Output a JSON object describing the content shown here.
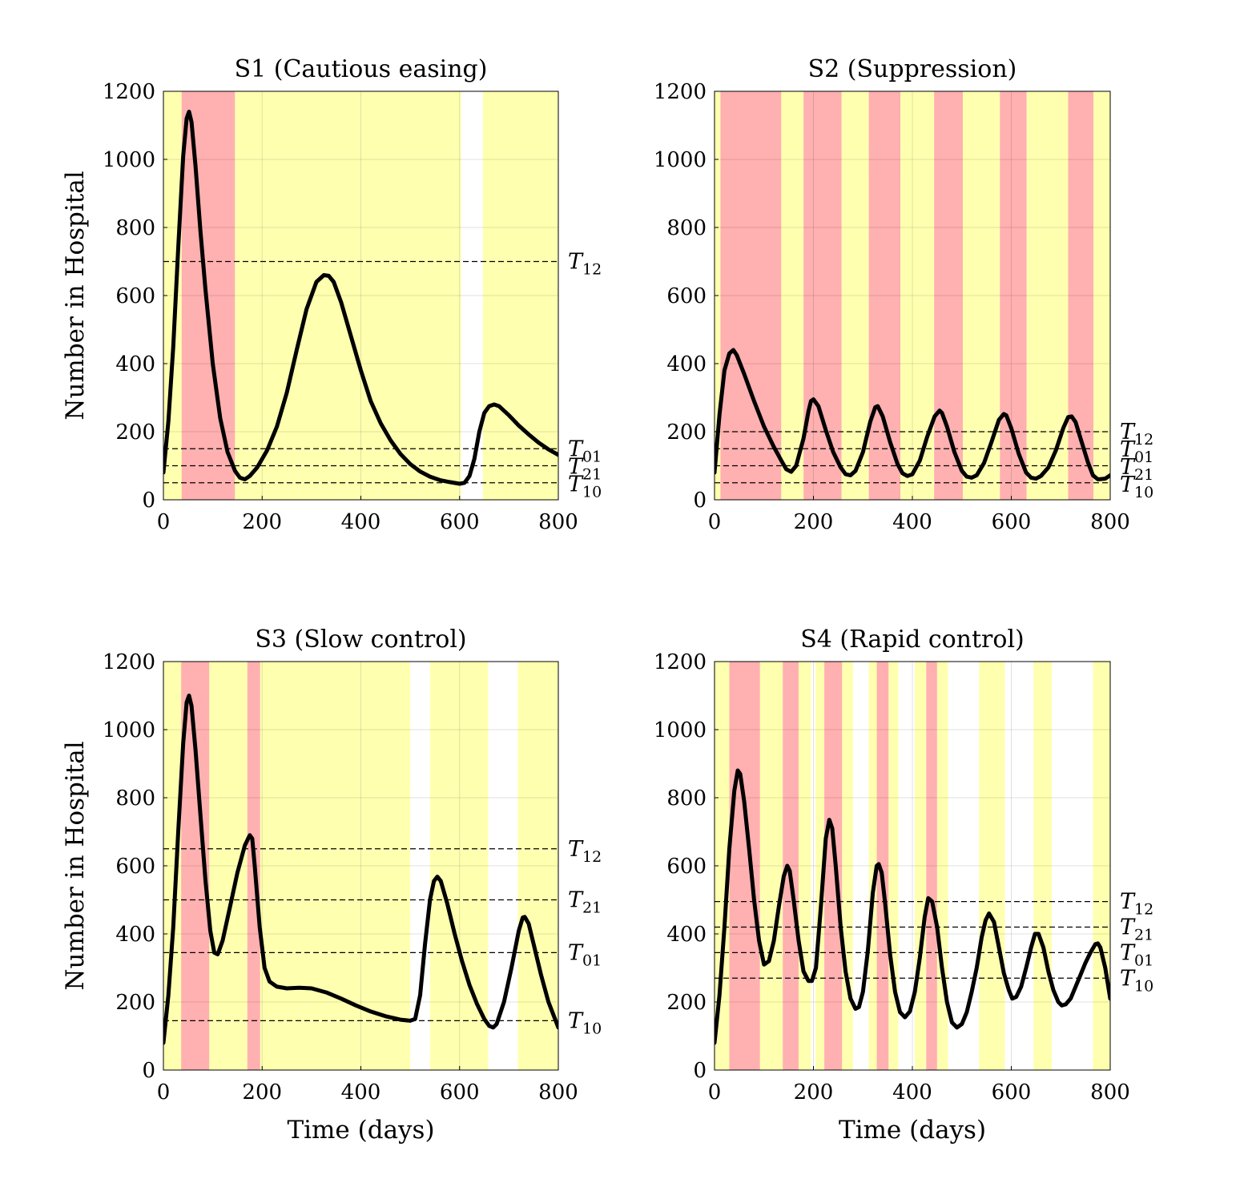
{
  "chart_data": [
    {
      "type": "line",
      "title": "S1 (Cautious easing)",
      "xlabel": "",
      "ylabel": "Number in Hospital",
      "xlim": [
        0,
        800
      ],
      "ylim": [
        0,
        1200
      ],
      "xticks": [
        0,
        200,
        400,
        600,
        800
      ],
      "yticks": [
        0,
        200,
        400,
        600,
        800,
        1000,
        1200
      ],
      "grid": true,
      "band_colors": {
        "level1": "#ffffb0",
        "level2": "#ffb0b0",
        "level0": "#ffffff"
      },
      "bands": [
        {
          "from": 0,
          "to": 37,
          "level": "level1"
        },
        {
          "from": 37,
          "to": 145,
          "level": "level2"
        },
        {
          "from": 145,
          "to": 603,
          "level": "level1"
        },
        {
          "from": 603,
          "to": 647,
          "level": "level0"
        },
        {
          "from": 647,
          "to": 800,
          "level": "level1"
        }
      ],
      "thresholds": [
        {
          "name": "T",
          "sub": "12",
          "value": 700
        },
        {
          "name": "T",
          "sub": "01",
          "value": 150
        },
        {
          "name": "T",
          "sub": "21",
          "value": 100
        },
        {
          "name": "T",
          "sub": "10",
          "value": 50
        }
      ],
      "series": [
        {
          "x": [
            0,
            10,
            20,
            30,
            40,
            47,
            52,
            57,
            65,
            75,
            85,
            100,
            115,
            130,
            145,
            155,
            165,
            175,
            190,
            210,
            230,
            250,
            270,
            290,
            310,
            325,
            335,
            345,
            360,
            380,
            400,
            420,
            440,
            460,
            480,
            500,
            520,
            540,
            560,
            580,
            600,
            610,
            620,
            630,
            640,
            650,
            660,
            670,
            680,
            700,
            720,
            740,
            760,
            780,
            800
          ],
          "y": [
            80,
            230,
            450,
            740,
            1010,
            1120,
            1140,
            1110,
            980,
            790,
            620,
            400,
            240,
            140,
            85,
            65,
            60,
            70,
            95,
            145,
            215,
            315,
            440,
            560,
            640,
            660,
            658,
            640,
            580,
            480,
            380,
            290,
            225,
            175,
            135,
            105,
            83,
            68,
            58,
            52,
            47,
            50,
            70,
            120,
            200,
            255,
            275,
            280,
            275,
            248,
            218,
            192,
            168,
            148,
            132
          ]
        }
      ]
    },
    {
      "type": "line",
      "title": "S2 (Suppression)",
      "xlabel": "",
      "ylabel": "",
      "xlim": [
        0,
        800
      ],
      "ylim": [
        0,
        1200
      ],
      "xticks": [
        0,
        200,
        400,
        600,
        800
      ],
      "yticks": [
        0,
        200,
        400,
        600,
        800,
        1000,
        1200
      ],
      "grid": true,
      "band_colors": {
        "level1": "#ffffb0",
        "level2": "#ffb0b0",
        "level0": "#ffffff"
      },
      "bands": [
        {
          "from": 0,
          "to": 12,
          "level": "level1"
        },
        {
          "from": 12,
          "to": 135,
          "level": "level2"
        },
        {
          "from": 135,
          "to": 180,
          "level": "level1"
        },
        {
          "from": 180,
          "to": 257,
          "level": "level2"
        },
        {
          "from": 257,
          "to": 312,
          "level": "level1"
        },
        {
          "from": 312,
          "to": 376,
          "level": "level2"
        },
        {
          "from": 376,
          "to": 444,
          "level": "level1"
        },
        {
          "from": 444,
          "to": 502,
          "level": "level2"
        },
        {
          "from": 502,
          "to": 577,
          "level": "level1"
        },
        {
          "from": 577,
          "to": 631,
          "level": "level2"
        },
        {
          "from": 631,
          "to": 715,
          "level": "level1"
        },
        {
          "from": 715,
          "to": 766,
          "level": "level2"
        },
        {
          "from": 766,
          "to": 800,
          "level": "level1"
        }
      ],
      "thresholds": [
        {
          "name": "T",
          "sub": "12",
          "value": 200
        },
        {
          "name": "T",
          "sub": "01",
          "value": 150
        },
        {
          "name": "T",
          "sub": "21",
          "value": 100
        },
        {
          "name": "T",
          "sub": "10",
          "value": 50
        }
      ],
      "series": [
        {
          "x": [
            0,
            10,
            20,
            30,
            38,
            45,
            60,
            80,
            100,
            120,
            135,
            145,
            155,
            165,
            180,
            190,
            195,
            200,
            210,
            225,
            240,
            255,
            265,
            275,
            285,
            300,
            315,
            325,
            330,
            340,
            355,
            370,
            380,
            390,
            400,
            415,
            430,
            445,
            455,
            460,
            470,
            485,
            500,
            510,
            520,
            530,
            545,
            560,
            575,
            585,
            590,
            600,
            615,
            630,
            640,
            650,
            660,
            675,
            690,
            705,
            715,
            722,
            730,
            740,
            755,
            765,
            775,
            790,
            800
          ],
          "y": [
            80,
            250,
            380,
            430,
            440,
            425,
            370,
            290,
            215,
            155,
            115,
            90,
            82,
            100,
            180,
            260,
            290,
            295,
            275,
            205,
            140,
            95,
            75,
            72,
            85,
            140,
            230,
            272,
            275,
            245,
            170,
            105,
            78,
            70,
            75,
            115,
            185,
            245,
            262,
            255,
            215,
            140,
            85,
            68,
            65,
            72,
            108,
            170,
            235,
            252,
            248,
            210,
            135,
            80,
            65,
            62,
            70,
            95,
            145,
            210,
            243,
            245,
            228,
            180,
            110,
            72,
            60,
            62,
            72
          ]
        }
      ]
    },
    {
      "type": "line",
      "title": "S3 (Slow control)",
      "xlabel": "Time (days)",
      "ylabel": "Number in Hospital",
      "xlim": [
        0,
        800
      ],
      "ylim": [
        0,
        1200
      ],
      "xticks": [
        0,
        200,
        400,
        600,
        800
      ],
      "yticks": [
        0,
        200,
        400,
        600,
        800,
        1000,
        1200
      ],
      "grid": true,
      "band_colors": {
        "level1": "#ffffb0",
        "level2": "#ffb0b0",
        "level0": "#ffffff"
      },
      "bands": [
        {
          "from": 0,
          "to": 36,
          "level": "level1"
        },
        {
          "from": 36,
          "to": 93,
          "level": "level2"
        },
        {
          "from": 93,
          "to": 170,
          "level": "level1"
        },
        {
          "from": 170,
          "to": 196,
          "level": "level2"
        },
        {
          "from": 196,
          "to": 500,
          "level": "level1"
        },
        {
          "from": 500,
          "to": 540,
          "level": "level0"
        },
        {
          "from": 540,
          "to": 658,
          "level": "level1"
        },
        {
          "from": 658,
          "to": 718,
          "level": "level0"
        },
        {
          "from": 718,
          "to": 800,
          "level": "level1"
        }
      ],
      "thresholds": [
        {
          "name": "T",
          "sub": "12",
          "value": 650
        },
        {
          "name": "T",
          "sub": "21",
          "value": 500
        },
        {
          "name": "T",
          "sub": "01",
          "value": 345
        },
        {
          "name": "T",
          "sub": "10",
          "value": 145
        }
      ],
      "series": [
        {
          "x": [
            0,
            10,
            20,
            30,
            40,
            47,
            52,
            57,
            65,
            75,
            85,
            95,
            103,
            110,
            120,
            135,
            150,
            165,
            175,
            180,
            185,
            195,
            205,
            215,
            230,
            250,
            275,
            300,
            330,
            360,
            390,
            420,
            450,
            480,
            500,
            510,
            520,
            530,
            540,
            548,
            555,
            562,
            575,
            590,
            605,
            620,
            635,
            650,
            660,
            668,
            675,
            690,
            705,
            720,
            728,
            732,
            740,
            750,
            765,
            780,
            800
          ],
          "y": [
            80,
            220,
            420,
            700,
            960,
            1080,
            1100,
            1070,
            940,
            750,
            560,
            410,
            345,
            340,
            380,
            480,
            580,
            660,
            690,
            680,
            600,
            420,
            300,
            260,
            245,
            240,
            242,
            240,
            228,
            210,
            190,
            172,
            158,
            148,
            145,
            150,
            220,
            370,
            500,
            555,
            568,
            555,
            490,
            400,
            320,
            250,
            195,
            150,
            130,
            125,
            135,
            200,
            300,
            410,
            448,
            450,
            430,
            370,
            280,
            200,
            125
          ]
        }
      ]
    },
    {
      "type": "line",
      "title": "S4 (Rapid control)",
      "xlabel": "Time (days)",
      "ylabel": "",
      "xlim": [
        0,
        800
      ],
      "ylim": [
        0,
        1200
      ],
      "xticks": [
        0,
        200,
        400,
        600,
        800
      ],
      "yticks": [
        0,
        200,
        400,
        600,
        800,
        1000,
        1200
      ],
      "grid": true,
      "band_colors": {
        "level1": "#ffffb0",
        "level2": "#ffb0b0",
        "level0": "#ffffff"
      },
      "bands": [
        {
          "from": 0,
          "to": 30,
          "level": "level1"
        },
        {
          "from": 30,
          "to": 92,
          "level": "level2"
        },
        {
          "from": 92,
          "to": 138,
          "level": "level1"
        },
        {
          "from": 138,
          "to": 170,
          "level": "level2"
        },
        {
          "from": 170,
          "to": 195,
          "level": "level1"
        },
        {
          "from": 195,
          "to": 204,
          "level": "level0"
        },
        {
          "from": 204,
          "to": 222,
          "level": "level1"
        },
        {
          "from": 222,
          "to": 258,
          "level": "level2"
        },
        {
          "from": 258,
          "to": 280,
          "level": "level1"
        },
        {
          "from": 280,
          "to": 312,
          "level": "level0"
        },
        {
          "from": 312,
          "to": 328,
          "level": "level1"
        },
        {
          "from": 328,
          "to": 352,
          "level": "level2"
        },
        {
          "from": 352,
          "to": 372,
          "level": "level1"
        },
        {
          "from": 372,
          "to": 405,
          "level": "level0"
        },
        {
          "from": 405,
          "to": 428,
          "level": "level1"
        },
        {
          "from": 428,
          "to": 450,
          "level": "level2"
        },
        {
          "from": 450,
          "to": 472,
          "level": "level1"
        },
        {
          "from": 472,
          "to": 535,
          "level": "level0"
        },
        {
          "from": 535,
          "to": 587,
          "level": "level1"
        },
        {
          "from": 587,
          "to": 645,
          "level": "level0"
        },
        {
          "from": 645,
          "to": 682,
          "level": "level1"
        },
        {
          "from": 682,
          "to": 765,
          "level": "level0"
        },
        {
          "from": 765,
          "to": 800,
          "level": "level1"
        }
      ],
      "thresholds": [
        {
          "name": "T",
          "sub": "12",
          "value": 495
        },
        {
          "name": "T",
          "sub": "21",
          "value": 420
        },
        {
          "name": "T",
          "sub": "01",
          "value": 345
        },
        {
          "name": "T",
          "sub": "10",
          "value": 270
        }
      ],
      "series": [
        {
          "x": [
            0,
            10,
            20,
            30,
            40,
            47,
            52,
            60,
            70,
            80,
            90,
            100,
            110,
            120,
            130,
            140,
            147,
            152,
            160,
            170,
            180,
            190,
            197,
            205,
            215,
            225,
            232,
            238,
            245,
            255,
            265,
            275,
            285,
            292,
            300,
            310,
            320,
            328,
            332,
            338,
            345,
            355,
            365,
            375,
            385,
            395,
            405,
            415,
            425,
            432,
            440,
            450,
            460,
            470,
            480,
            490,
            500,
            510,
            520,
            530,
            540,
            548,
            555,
            565,
            575,
            585,
            595,
            602,
            610,
            620,
            630,
            640,
            648,
            655,
            665,
            675,
            685,
            695,
            702,
            710,
            720,
            730,
            740,
            750,
            760,
            770,
            775,
            780,
            790,
            800
          ],
          "y": [
            80,
            220,
            420,
            650,
            820,
            880,
            870,
            790,
            650,
            500,
            380,
            310,
            320,
            380,
            480,
            570,
            600,
            585,
            500,
            380,
            290,
            262,
            262,
            300,
            480,
            680,
            735,
            710,
            600,
            420,
            290,
            210,
            180,
            185,
            230,
            350,
            520,
            600,
            605,
            580,
            490,
            340,
            230,
            170,
            155,
            172,
            230,
            330,
            450,
            505,
            495,
            420,
            300,
            200,
            140,
            125,
            135,
            170,
            230,
            300,
            390,
            440,
            460,
            435,
            360,
            285,
            235,
            210,
            215,
            245,
            300,
            360,
            400,
            400,
            360,
            290,
            235,
            200,
            190,
            193,
            210,
            245,
            280,
            315,
            345,
            370,
            372,
            360,
            300,
            210
          ]
        }
      ]
    }
  ]
}
